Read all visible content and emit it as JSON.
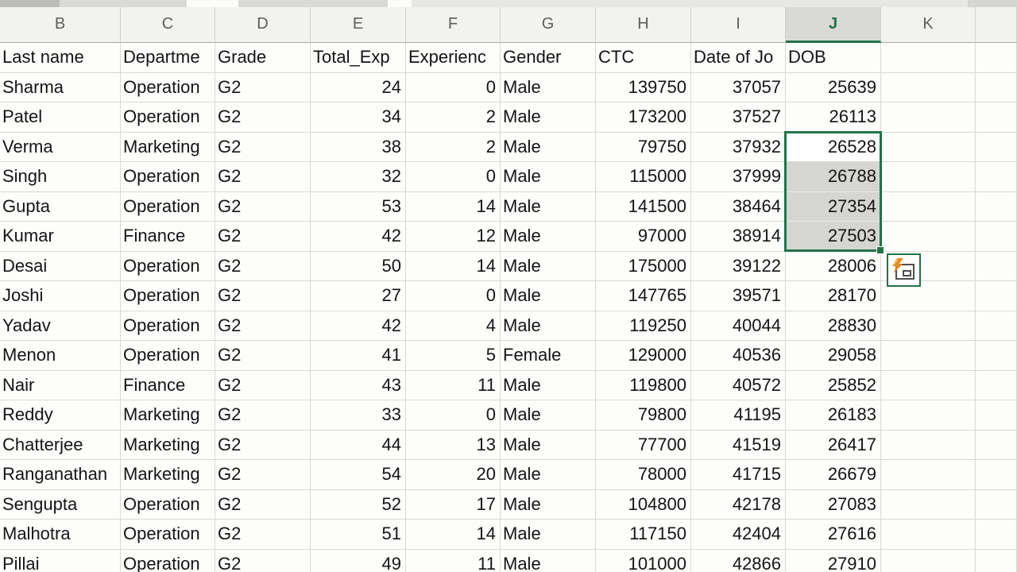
{
  "spreadsheet": {
    "column_headers": [
      "B",
      "C",
      "D",
      "E",
      "F",
      "G",
      "H",
      "I",
      "J",
      "K",
      ""
    ],
    "selected_column": "J",
    "field_headers": [
      "Last name",
      "Departme",
      "Grade",
      "Total_Exp",
      "Experienc",
      "Gender",
      "CTC",
      "Date of Jo",
      "DOB"
    ],
    "rows": [
      [
        "Sharma",
        "Operation",
        "G2",
        "24",
        "0",
        "Male",
        "139750",
        "37057",
        "25639"
      ],
      [
        "Patel",
        "Operation",
        "G2",
        "34",
        "2",
        "Male",
        "173200",
        "37527",
        "26113"
      ],
      [
        "Verma",
        "Marketing",
        "G2",
        "38",
        "2",
        "Male",
        "79750",
        "37932",
        "26528"
      ],
      [
        "Singh",
        "Operation",
        "G2",
        "32",
        "0",
        "Male",
        "115000",
        "37999",
        "26788"
      ],
      [
        "Gupta",
        "Operation",
        "G2",
        "53",
        "14",
        "Male",
        "141500",
        "38464",
        "27354"
      ],
      [
        "Kumar",
        "Finance",
        "G2",
        "42",
        "12",
        "Male",
        "97000",
        "38914",
        "27503"
      ],
      [
        "Desai",
        "Operation",
        "G2",
        "50",
        "14",
        "Male",
        "175000",
        "39122",
        "28006"
      ],
      [
        "Joshi",
        "Operation",
        "G2",
        "27",
        "0",
        "Male",
        "147765",
        "39571",
        "28170"
      ],
      [
        "Yadav",
        "Operation",
        "G2",
        "42",
        "4",
        "Male",
        "119250",
        "40044",
        "28830"
      ],
      [
        "Menon",
        "Operation",
        "G2",
        "41",
        "5",
        "Female",
        "129000",
        "40536",
        "29058"
      ],
      [
        "Nair",
        "Finance",
        "G2",
        "43",
        "11",
        "Male",
        "119800",
        "40572",
        "25852"
      ],
      [
        "Reddy",
        "Marketing",
        "G2",
        "33",
        "0",
        "Male",
        "79800",
        "41195",
        "26183"
      ],
      [
        "Chatterjee",
        "Marketing",
        "G2",
        "44",
        "13",
        "Male",
        "77700",
        "41519",
        "26417"
      ],
      [
        "Ranganathan",
        "Marketing",
        "G2",
        "54",
        "20",
        "Male",
        "78000",
        "41715",
        "26679"
      ],
      [
        "Sengupta",
        "Operation",
        "G2",
        "52",
        "17",
        "Male",
        "104800",
        "42178",
        "27083"
      ],
      [
        "Malhotra",
        "Operation",
        "G2",
        "51",
        "14",
        "Male",
        "117150",
        "42404",
        "27616"
      ],
      [
        "Pillai",
        "Operation",
        "G2",
        "49",
        "11",
        "Male",
        "101000",
        "42866",
        "27910"
      ]
    ],
    "selection": {
      "column": "J",
      "active_value": "26528",
      "values": [
        "26528",
        "26788",
        "27354",
        "27503"
      ],
      "first_row_index": 2,
      "row_count": 4
    }
  },
  "colors": {
    "excel_green": "#217346",
    "selection_fill_gray": "#d5d5d2",
    "selected_header_bg": "#d9d9d6",
    "header_bg": "#f2f2ef",
    "gridline": "#d8d8d5",
    "bolt_orange": "#e78b24"
  },
  "icons": {
    "quick_analysis": "quick-analysis-lightning-icon"
  }
}
